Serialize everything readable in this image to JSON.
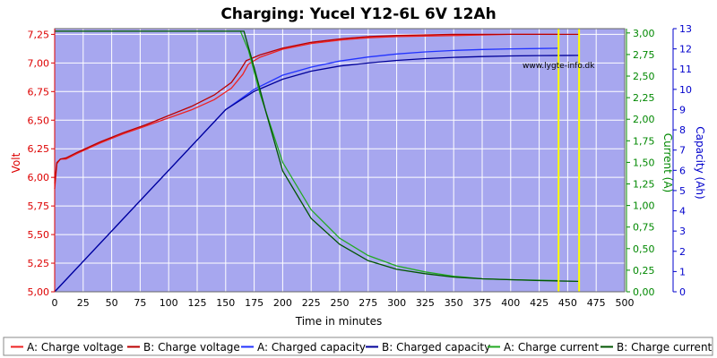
{
  "chart_data": {
    "type": "line",
    "title": "Charging: Yucel Y12-6L 6V 12Ah",
    "xlabel": "Time in minutes",
    "ylabel_left": "Volt",
    "ylabel_right1": "Current (A)",
    "ylabel_right2": "Capacity (Ah)",
    "watermark": "www.lygte-info.dk",
    "xlim": [
      0,
      500
    ],
    "ylim_volt": [
      5.0,
      7.3
    ],
    "ylim_current": [
      0,
      3.05
    ],
    "ylim_capacity": [
      0,
      13
    ],
    "x_ticks": [
      "0",
      "25",
      "50",
      "75",
      "100",
      "125",
      "150",
      "175",
      "200",
      "225",
      "250",
      "275",
      "300",
      "325",
      "350",
      "375",
      "400",
      "425",
      "450",
      "475",
      "500"
    ],
    "volt_ticks": [
      "5,00",
      "5,25",
      "5,50",
      "5,75",
      "6,00",
      "6,25",
      "6,50",
      "6,75",
      "7,00",
      "7,25"
    ],
    "current_ticks": [
      "0,00",
      "0,25",
      "0,50",
      "0,75",
      "1,00",
      "1,25",
      "1,50",
      "1,75",
      "2,00",
      "2,25",
      "2,50",
      "2,75",
      "3,00"
    ],
    "capacity_ticks": [
      "0",
      "1",
      "2",
      "3",
      "4",
      "5",
      "6",
      "7",
      "8",
      "9",
      "10",
      "11",
      "12",
      "13"
    ],
    "grid": true,
    "vertical_markers": [
      442,
      460
    ],
    "colors": {
      "plot_bg": "#a7a7ef",
      "grid": "#ffffff",
      "volt_axis": "#dd0000",
      "current_axis": "#008800",
      "capacity_axis": "#0000cc",
      "marker": "#ffff00"
    },
    "series": [
      {
        "name": "A: Charge voltage",
        "axis": "volt",
        "color": "#ee2222",
        "x": [
          0,
          2,
          5,
          10,
          20,
          40,
          60,
          80,
          100,
          120,
          140,
          155,
          165,
          170,
          180,
          200,
          225,
          250,
          275,
          300,
          350,
          400,
          442
        ],
        "y": [
          5.9,
          6.12,
          6.16,
          6.16,
          6.21,
          6.3,
          6.38,
          6.45,
          6.52,
          6.59,
          6.68,
          6.78,
          6.9,
          6.99,
          7.05,
          7.12,
          7.17,
          7.2,
          7.22,
          7.23,
          7.24,
          7.25,
          7.25
        ]
      },
      {
        "name": "B: Charge voltage",
        "axis": "volt",
        "color": "#bb0000",
        "x": [
          0,
          2,
          5,
          10,
          20,
          40,
          60,
          80,
          100,
          120,
          140,
          155,
          163,
          168,
          180,
          200,
          225,
          250,
          275,
          300,
          350,
          400,
          460
        ],
        "y": [
          5.95,
          6.13,
          6.16,
          6.17,
          6.22,
          6.31,
          6.39,
          6.46,
          6.54,
          6.62,
          6.72,
          6.83,
          6.94,
          7.02,
          7.07,
          7.13,
          7.18,
          7.21,
          7.23,
          7.24,
          7.25,
          7.25,
          7.25
        ]
      },
      {
        "name": "A: Charged capacity",
        "axis": "capacity",
        "color": "#2233ff",
        "x": [
          0,
          25,
          50,
          75,
          100,
          125,
          150,
          175,
          200,
          225,
          250,
          275,
          300,
          325,
          350,
          375,
          400,
          425,
          442
        ],
        "y": [
          0,
          1.5,
          3.0,
          4.5,
          6.0,
          7.5,
          9.0,
          10.0,
          10.7,
          11.1,
          11.4,
          11.6,
          11.75,
          11.85,
          11.92,
          11.97,
          12.0,
          12.02,
          12.03
        ]
      },
      {
        "name": "B: Charged capacity",
        "axis": "capacity",
        "color": "#000099",
        "x": [
          0,
          25,
          50,
          75,
          100,
          125,
          150,
          175,
          200,
          225,
          250,
          275,
          300,
          325,
          350,
          375,
          400,
          425,
          460
        ],
        "y": [
          0,
          1.5,
          3.0,
          4.5,
          6.0,
          7.5,
          9.0,
          9.9,
          10.5,
          10.9,
          11.15,
          11.3,
          11.43,
          11.52,
          11.58,
          11.62,
          11.65,
          11.67,
          11.68
        ]
      },
      {
        "name": "A: Charge current",
        "axis": "current",
        "color": "#22aa22",
        "x": [
          0,
          100,
          163,
          170,
          180,
          200,
          225,
          250,
          275,
          300,
          325,
          350,
          375,
          400,
          442
        ],
        "y": [
          3.02,
          3.02,
          3.02,
          2.8,
          2.3,
          1.5,
          0.95,
          0.62,
          0.42,
          0.3,
          0.23,
          0.18,
          0.15,
          0.14,
          0.13
        ]
      },
      {
        "name": "B: Charge current",
        "axis": "current",
        "color": "#005500",
        "x": [
          0,
          100,
          166,
          175,
          185,
          200,
          225,
          250,
          275,
          300,
          325,
          350,
          375,
          400,
          425,
          460
        ],
        "y": [
          3.02,
          3.02,
          3.02,
          2.6,
          2.1,
          1.4,
          0.85,
          0.55,
          0.36,
          0.26,
          0.21,
          0.17,
          0.15,
          0.14,
          0.13,
          0.12
        ]
      }
    ]
  }
}
